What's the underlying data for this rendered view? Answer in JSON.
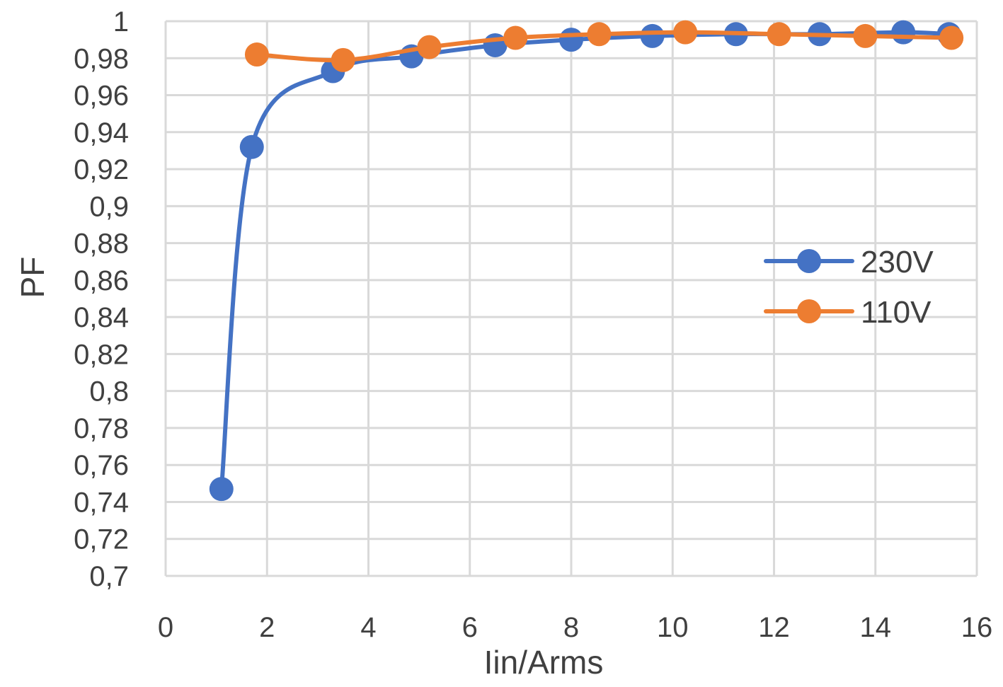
{
  "chart_data": {
    "type": "scatter",
    "xlabel": "Iin/Arms",
    "ylabel": "PF",
    "xlim": [
      0,
      16
    ],
    "ylim": [
      0.7,
      1
    ],
    "x_ticks": [
      "0",
      "2",
      "4",
      "6",
      "8",
      "10",
      "12",
      "14",
      "16"
    ],
    "y_ticks": [
      "0,7",
      "0,72",
      "0,74",
      "0,76",
      "0,78",
      "0,8",
      "0,82",
      "0,84",
      "0,86",
      "0,88",
      "0,9",
      "0,92",
      "0,94",
      "0,96",
      "0,98",
      "1"
    ],
    "grid": true,
    "legend_position": "right",
    "series": [
      {
        "name": "230V",
        "color": "#4472c4",
        "x": [
          1.1,
          1.7,
          3.3,
          4.85,
          6.5,
          8.0,
          9.6,
          11.25,
          12.9,
          14.55,
          15.45
        ],
        "y": [
          0.747,
          0.932,
          0.973,
          0.981,
          0.987,
          0.99,
          0.992,
          0.993,
          0.993,
          0.994,
          0.993
        ]
      },
      {
        "name": "110V",
        "color": "#ed7d31",
        "x": [
          1.8,
          3.5,
          5.2,
          6.9,
          8.55,
          10.25,
          12.1,
          13.8,
          15.5
        ],
        "y": [
          0.982,
          0.979,
          0.986,
          0.991,
          0.993,
          0.994,
          0.993,
          0.992,
          0.991
        ]
      }
    ]
  }
}
